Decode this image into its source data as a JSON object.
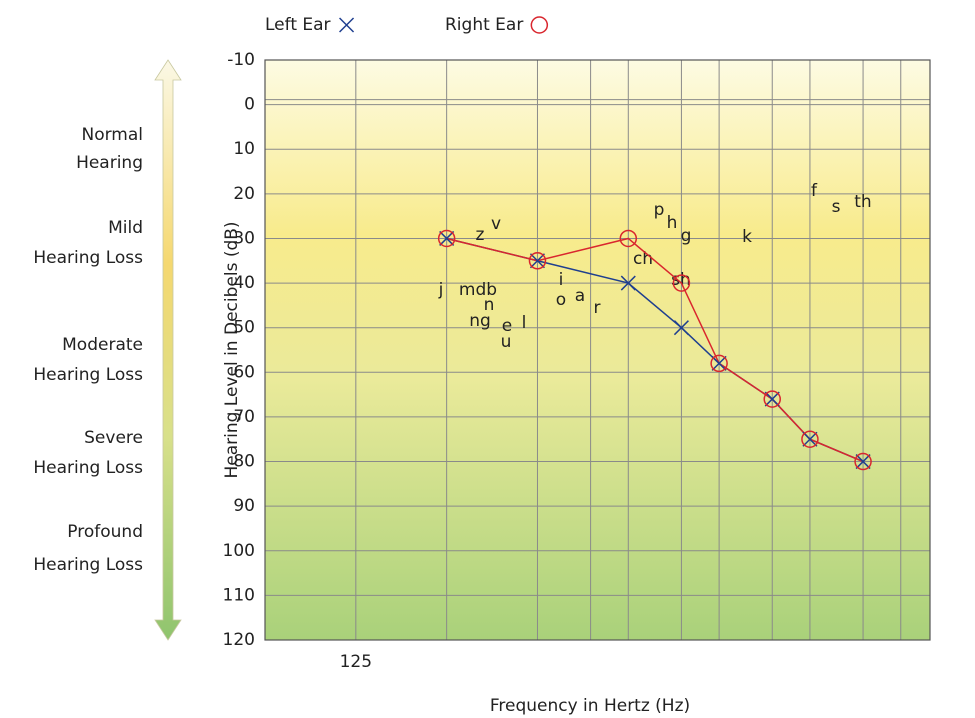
{
  "chart_data": {
    "type": "line",
    "x_label": "Frequency in Hertz (Hz)",
    "y_label": "Hearing Level in Decibels (dB)",
    "x": [
      250,
      500,
      1000,
      1500,
      2000,
      3000,
      4000,
      6000
    ],
    "xscale": "log",
    "xlim": [
      62.5,
      10000
    ],
    "xticks": [
      125
    ],
    "xgrid": [
      250,
      500,
      750,
      1000,
      1500,
      2000,
      3000,
      4000,
      6000,
      8000
    ],
    "ylim": [
      -10,
      120
    ],
    "y_inverted": true,
    "yticks": [
      -10,
      0,
      10,
      20,
      30,
      40,
      50,
      60,
      70,
      80,
      90,
      100,
      110,
      120
    ],
    "grid": true,
    "series": [
      {
        "name": "Left Ear",
        "color": "#1f3f8f",
        "marker": "x",
        "values": [
          30,
          35,
          40,
          50,
          58,
          66,
          75,
          80
        ]
      },
      {
        "name": "Right Ear",
        "color": "#d9262e",
        "marker": "o",
        "values": [
          30,
          35,
          30,
          40,
          58,
          66,
          75,
          80
        ]
      }
    ],
    "hearing_levels": [
      [
        "Normal",
        "Hearing"
      ],
      [
        "Mild",
        "Hearing Loss"
      ],
      [
        "Moderate",
        "Hearing Loss"
      ],
      [
        "Severe",
        "Hearing Loss"
      ],
      [
        "Profound",
        "Hearing Loss"
      ]
    ],
    "speech_sounds": [
      "z",
      "v",
      "j",
      "mdb",
      "n",
      "ng",
      "e",
      "l",
      "u",
      "i",
      "o",
      "a",
      "r",
      "ch",
      "sh",
      "p",
      "h",
      "g",
      "k",
      "f",
      "s",
      "th"
    ]
  }
}
